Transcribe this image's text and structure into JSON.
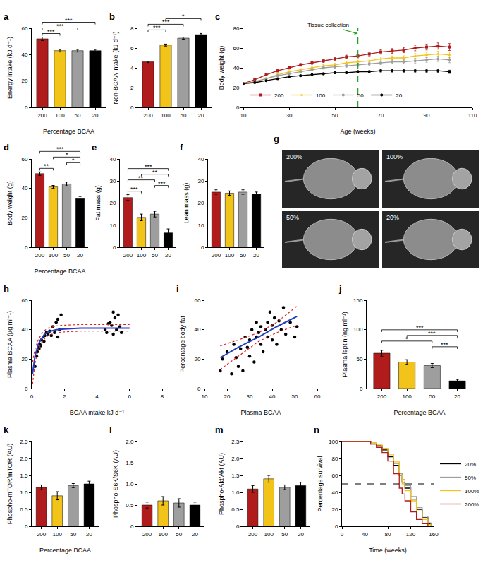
{
  "chart_data": [
    {
      "panel": "a",
      "type": "bar",
      "xlabel": "Percentage BCAA",
      "ylabel": "Energy intake (kJ d⁻¹)",
      "categories": [
        "200",
        "100",
        "50",
        "20"
      ],
      "values": [
        52,
        43,
        43,
        43
      ],
      "errors": [
        1.3,
        1,
        1,
        1
      ],
      "colors": [
        "#b01c1c",
        "#f2c318",
        "#9e9e9e",
        "#000000"
      ],
      "ylim": [
        0,
        60
      ],
      "yticks": [
        0,
        20,
        40,
        60
      ],
      "significance": [
        {
          "between": [
            "200",
            "100"
          ],
          "label": "***"
        },
        {
          "between": [
            "200",
            "50"
          ],
          "label": "***"
        },
        {
          "between": [
            "200",
            "20"
          ],
          "label": "***"
        }
      ]
    },
    {
      "panel": "b",
      "type": "bar",
      "ylabel": "Non-BCAA intake (kJ d⁻¹)",
      "categories": [
        "200",
        "100",
        "50",
        "20"
      ],
      "values": [
        4.6,
        6.3,
        7.0,
        7.35
      ],
      "errors": [
        0.07,
        0.1,
        0.1,
        0.12
      ],
      "colors": [
        "#b01c1c",
        "#f2c318",
        "#9e9e9e",
        "#000000"
      ],
      "ylim": [
        0,
        8
      ],
      "yticks": [
        0,
        2,
        4,
        6,
        8
      ],
      "significance": [
        {
          "between": [
            "200",
            "100"
          ],
          "label": "***"
        },
        {
          "between": [
            "200",
            "50"
          ],
          "label": "***"
        },
        {
          "between": [
            "100",
            "20"
          ],
          "label": "*"
        }
      ]
    },
    {
      "panel": "c",
      "type": "line",
      "xlabel": "Age (weeks)",
      "ylabel": "Body weight (g)",
      "x": [
        10,
        15,
        20,
        25,
        30,
        35,
        40,
        45,
        50,
        55,
        60,
        65,
        70,
        75,
        80,
        85,
        90,
        95,
        100
      ],
      "series": [
        {
          "name": "200",
          "color": "#b01c1c",
          "marker": "square",
          "values": [
            24,
            28,
            33,
            37,
            40,
            43,
            45,
            47,
            49,
            51,
            52,
            54,
            56,
            57,
            58,
            60,
            61,
            62,
            61
          ],
          "errors": [
            0.5,
            0.8,
            1,
            1.2,
            1.3,
            1.4,
            1.5,
            1.6,
            1.7,
            1.8,
            1.9,
            2,
            2.2,
            2.4,
            2.6,
            2.8,
            3,
            3.2,
            3.5
          ]
        },
        {
          "name": "100",
          "color": "#f2c318",
          "marker": "triangle-up",
          "values": [
            24,
            26,
            29,
            33,
            36,
            38,
            40,
            42,
            43,
            45,
            46,
            47,
            49,
            50,
            50,
            52,
            53,
            54,
            53
          ],
          "errors": [
            0.5,
            0.7,
            0.9,
            1,
            1.1,
            1.2,
            1.3,
            1.4,
            1.5,
            1.6,
            1.7,
            1.8,
            1.9,
            2,
            2.2,
            2.4,
            2.6,
            2.8,
            3
          ]
        },
        {
          "name": "50",
          "color": "#9e9e9e",
          "marker": "circle",
          "values": [
            24,
            26,
            29,
            32,
            34,
            36,
            38,
            40,
            41,
            42,
            43,
            44,
            45,
            46,
            46,
            47,
            48,
            49,
            48
          ],
          "errors": [
            0.5,
            0.7,
            0.8,
            0.9,
            1,
            1.1,
            1.2,
            1.3,
            1.4,
            1.5,
            1.6,
            1.7,
            1.8,
            1.9,
            2,
            2.2,
            2.4,
            2.6,
            2.8
          ]
        },
        {
          "name": "20",
          "color": "#000000",
          "marker": "circle",
          "values": [
            24,
            25,
            27,
            29,
            31,
            32,
            33,
            34,
            35,
            35,
            36,
            36,
            37,
            37,
            37,
            37,
            37,
            37,
            36
          ],
          "errors": [
            0.4,
            0.5,
            0.6,
            0.7,
            0.8,
            0.9,
            1,
            1,
            1.1,
            1.1,
            1.2,
            1.2,
            1.3,
            1.3,
            1.4,
            1.4,
            1.5,
            1.5,
            1.6
          ]
        }
      ],
      "xlim": [
        10,
        110
      ],
      "xticks": [
        10,
        30,
        50,
        70,
        90,
        110
      ],
      "ylim": [
        0,
        80
      ],
      "yticks": [
        0,
        20,
        40,
        60,
        80
      ],
      "legend": "bottom left",
      "reference_lines": [
        {
          "x": 60,
          "color": "#2ca02c",
          "line_style": "dash"
        }
      ],
      "annotations": [
        {
          "text": "Tissue collection",
          "x": 60
        }
      ]
    },
    {
      "panel": "d",
      "type": "bar",
      "xlabel": "Percentage BCAA",
      "ylabel": "Body weight (g)",
      "categories": [
        "200",
        "100",
        "50",
        "20"
      ],
      "values": [
        50,
        41,
        43,
        33
      ],
      "errors": [
        1.2,
        1,
        1.3,
        1.5
      ],
      "colors": [
        "#b01c1c",
        "#f2c318",
        "#9e9e9e",
        "#000000"
      ],
      "ylim": [
        0,
        60
      ],
      "yticks": [
        0,
        20,
        40,
        60
      ],
      "significance": [
        {
          "between": [
            "200",
            "100"
          ],
          "label": "**"
        },
        {
          "between": [
            "50",
            "20"
          ],
          "label": "*"
        },
        {
          "between": [
            "100",
            "20"
          ],
          "label": "*"
        },
        {
          "between": [
            "200",
            "20"
          ],
          "label": "***"
        }
      ]
    },
    {
      "panel": "e",
      "type": "bar",
      "ylabel": "Fat mass (g)",
      "categories": [
        "200",
        "100",
        "50",
        "20"
      ],
      "values": [
        22.5,
        13.5,
        15,
        6.5
      ],
      "errors": [
        1.3,
        1.5,
        1.3,
        1.8
      ],
      "colors": [
        "#b01c1c",
        "#f2c318",
        "#9e9e9e",
        "#000000"
      ],
      "ylim": [
        0,
        40
      ],
      "yticks": [
        0,
        10,
        20,
        30,
        40
      ],
      "significance": [
        {
          "between": [
            "200",
            "100"
          ],
          "label": "***"
        },
        {
          "between": [
            "50",
            "20"
          ],
          "label": "***"
        },
        {
          "between": [
            "200",
            "50"
          ],
          "label": "**"
        },
        {
          "between": [
            "100",
            "20"
          ],
          "label": "**"
        },
        {
          "between": [
            "200",
            "20"
          ],
          "label": "***"
        }
      ]
    },
    {
      "panel": "f",
      "type": "bar",
      "ylabel": "Lean mass (g)",
      "categories": [
        "200",
        "100",
        "50",
        "20"
      ],
      "values": [
        25,
        24.5,
        25,
        24
      ],
      "errors": [
        1,
        1,
        1,
        1
      ],
      "colors": [
        "#b01c1c",
        "#f2c318",
        "#9e9e9e",
        "#000000"
      ],
      "ylim": [
        0,
        40
      ],
      "yticks": [
        0,
        10,
        20,
        30,
        40
      ]
    },
    {
      "panel": "g",
      "type": "image",
      "labels": [
        "200%",
        "100%",
        "50%",
        "20%"
      ]
    },
    {
      "panel": "h",
      "type": "scatter",
      "xlabel": "BCAA intake kJ d⁻¹",
      "ylabel": "Plasma BCAA (µg ml⁻¹)",
      "color": "#000000",
      "x": [
        0.2,
        0.3,
        0.35,
        0.4,
        0.45,
        0.5,
        0.55,
        0.6,
        0.7,
        0.75,
        0.8,
        0.9,
        1.0,
        1.1,
        1.2,
        1.3,
        1.4,
        1.5,
        1.6,
        1.7,
        1.8,
        1.6,
        4.5,
        4.6,
        4.8,
        4.9,
        5.0,
        5.1,
        5.2,
        5.3,
        5.4,
        5.5,
        4.7,
        5.0
      ],
      "y": [
        15,
        22,
        25,
        28,
        27,
        30,
        29,
        33,
        35,
        32,
        36,
        38,
        37,
        39,
        36,
        42,
        38,
        45,
        47,
        40,
        50,
        35,
        40,
        38,
        45,
        43,
        37,
        48,
        40,
        50,
        42,
        38,
        44,
        52
      ],
      "fit": {
        "x": [
          0.05,
          0.2,
          0.4,
          0.6,
          0.8,
          1.0,
          1.5,
          2,
          3,
          4,
          5,
          6
        ],
        "y": [
          10,
          22,
          30,
          34,
          37,
          38.5,
          40,
          40.5,
          41,
          41,
          41,
          41
        ],
        "upper": [
          18,
          27,
          33,
          37,
          39.5,
          41,
          42.5,
          43,
          43.5,
          43.5,
          43.5,
          43.5
        ],
        "lower": [
          3,
          17,
          27,
          31,
          34,
          36,
          38,
          38.5,
          39,
          39,
          39,
          39
        ]
      },
      "xlim": [
        0,
        8
      ],
      "xticks": [
        0,
        2,
        4,
        6,
        8
      ],
      "ylim": [
        0,
        60
      ],
      "yticks": [
        0,
        20,
        40,
        60
      ]
    },
    {
      "panel": "i",
      "type": "scatter",
      "xlabel": "Plasma BCAA",
      "ylabel": "Percentage body fat",
      "color": "#000000",
      "x": [
        17,
        18,
        20,
        22,
        23,
        24,
        25,
        26,
        27,
        28,
        29,
        30,
        30,
        31,
        32,
        33,
        33,
        34,
        35,
        35,
        36,
        37,
        38,
        38,
        39,
        40,
        40,
        41,
        42,
        43,
        44,
        45,
        46,
        48,
        50,
        51
      ],
      "y": [
        12,
        20,
        25,
        10,
        30,
        21,
        15,
        27,
        12,
        35,
        28,
        33,
        22,
        40,
        18,
        35,
        45,
        38,
        30,
        42,
        25,
        40,
        45,
        35,
        52,
        43,
        33,
        48,
        30,
        46,
        40,
        55,
        37,
        45,
        35,
        42
      ],
      "fit": {
        "x": [
          17,
          25,
          34,
          42,
          51
        ],
        "y": [
          21,
          28,
          35,
          42,
          49
        ],
        "upper": [
          29,
          33,
          38,
          45,
          56
        ],
        "lower": [
          13,
          22,
          32,
          38,
          43
        ]
      },
      "xlim": [
        10,
        60
      ],
      "xticks": [
        10,
        20,
        30,
        40,
        50,
        60
      ],
      "ylim": [
        0,
        60
      ],
      "yticks": [
        0,
        20,
        40,
        60
      ]
    },
    {
      "panel": "j",
      "type": "bar",
      "xlabel": "Percentage BCAA",
      "ylabel": "Plasma leptin (ng ml⁻¹)",
      "categories": [
        "200",
        "100",
        "50",
        "20"
      ],
      "values": [
        60,
        45,
        39,
        13
      ],
      "errors": [
        5,
        4,
        3.5,
        2.5
      ],
      "colors": [
        "#b01c1c",
        "#f2c318",
        "#9e9e9e",
        "#000000"
      ],
      "ylim": [
        0,
        150
      ],
      "yticks": [
        0,
        50,
        100,
        150
      ],
      "significance": [
        {
          "between": [
            "50",
            "20"
          ],
          "label": "***"
        },
        {
          "between": [
            "200",
            "50"
          ],
          "label": "*"
        },
        {
          "between": [
            "100",
            "20"
          ],
          "label": "***"
        },
        {
          "between": [
            "200",
            "20"
          ],
          "label": "***"
        }
      ]
    },
    {
      "panel": "k",
      "type": "bar",
      "xlabel": "Percentage BCAA",
      "ylabel": "Phospho-mTOR/mTOR (AU)",
      "categories": [
        "200",
        "100",
        "50",
        "20"
      ],
      "values": [
        1.15,
        0.9,
        1.2,
        1.25
      ],
      "errors": [
        0.07,
        0.12,
        0.06,
        0.08
      ],
      "colors": [
        "#b01c1c",
        "#f2c318",
        "#9e9e9e",
        "#000000"
      ],
      "ylim": [
        0,
        2.5
      ],
      "yticks": [
        0,
        0.5,
        {
          "value": 1,
          "label": "1.0"
        },
        1.5,
        {
          "value": 2,
          "label": "2.0"
        },
        2.5
      ]
    },
    {
      "panel": "l",
      "type": "bar",
      "ylabel": "Phospho-S6K/S6K (AU)",
      "categories": [
        "200",
        "100",
        "50",
        "20"
      ],
      "values": [
        0.5,
        0.6,
        0.55,
        0.5
      ],
      "errors": [
        0.07,
        0.1,
        0.1,
        0.07
      ],
      "colors": [
        "#b01c1c",
        "#f2c318",
        "#9e9e9e",
        "#000000"
      ],
      "ylim": [
        0,
        2
      ],
      "yticks": [
        0,
        0.5,
        {
          "value": 1,
          "label": "1.0"
        },
        1.5,
        {
          "value": 2,
          "label": "2.0"
        }
      ]
    },
    {
      "panel": "m",
      "type": "bar",
      "ylabel": "Phospho-Akt/Akt (AU)",
      "categories": [
        "200",
        "100",
        "50",
        "20"
      ],
      "values": [
        1.1,
        1.4,
        1.15,
        1.2
      ],
      "errors": [
        0.1,
        0.1,
        0.07,
        0.1
      ],
      "colors": [
        "#b01c1c",
        "#f2c318",
        "#9e9e9e",
        "#000000"
      ],
      "ylim": [
        0,
        2.5
      ],
      "yticks": [
        0,
        0.5,
        {
          "value": 1,
          "label": "1.0"
        },
        1.5,
        {
          "value": 2,
          "label": "2.0"
        },
        2.5
      ]
    },
    {
      "panel": "n",
      "type": "line",
      "line_style": "step",
      "xlabel": "Time (weeks)",
      "ylabel": "Percentage survival",
      "x": [
        0,
        40,
        50,
        60,
        70,
        80,
        90,
        100,
        105,
        110,
        120,
        130,
        140,
        150,
        155
      ],
      "series": [
        {
          "name": "20%",
          "color": "#000000",
          "values": [
            100,
            100,
            98,
            95,
            90,
            82,
            72,
            60,
            52,
            45,
            32,
            20,
            10,
            3,
            0
          ]
        },
        {
          "name": "50%",
          "color": "#9e9e9e",
          "values": [
            100,
            100,
            97,
            94,
            89,
            83,
            74,
            62,
            55,
            48,
            35,
            22,
            12,
            4,
            0
          ]
        },
        {
          "name": "100%",
          "color": "#f2c318",
          "values": [
            100,
            100,
            98,
            96,
            92,
            85,
            76,
            60,
            50,
            42,
            30,
            18,
            8,
            2,
            0
          ]
        },
        {
          "name": "200%",
          "color": "#b01c1c",
          "values": [
            100,
            100,
            97,
            93,
            87,
            77,
            62,
            45,
            38,
            30,
            17,
            8,
            3,
            0,
            0
          ]
        }
      ],
      "xlim": [
        0,
        160
      ],
      "xticks": [
        0,
        40,
        80,
        120,
        160
      ],
      "ylim": [
        0,
        100
      ],
      "yticks": [
        0,
        20,
        40,
        60,
        80,
        100
      ],
      "legend": "right",
      "reference_lines": [
        {
          "y": 50,
          "color": "#000000",
          "line_style": "dash"
        }
      ]
    }
  ]
}
